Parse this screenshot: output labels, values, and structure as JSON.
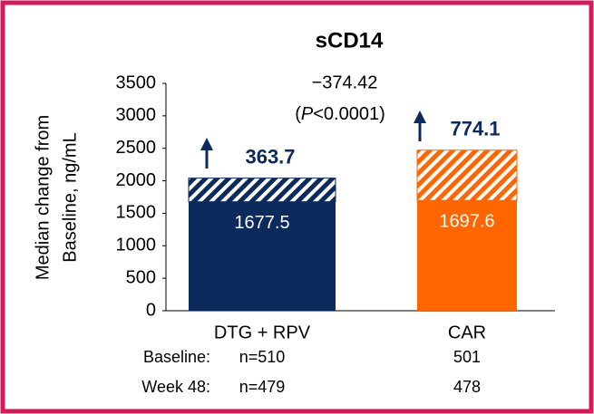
{
  "chart_data": {
    "type": "stacked_bar",
    "title": "sCD14",
    "y_label": [
      "Median change from",
      "Baseline, ng/mL"
    ],
    "categories": [
      "DTG + RPV",
      "CAR"
    ],
    "colors": [
      "#0c2a5b",
      "#ff6600"
    ],
    "series": [
      {
        "values": [
          1677.5,
          1697.6
        ],
        "pattern": "solid"
      },
      {
        "values": [
          363.7,
          774.1
        ],
        "pattern": "hatch"
      }
    ],
    "ylim": [
      0,
      3500
    ],
    "yticks": [
      0,
      500,
      1000,
      1500,
      2000,
      2500,
      3000,
      3500
    ],
    "difference": "−374.42",
    "p_value": [
      "(",
      "P",
      "<0.0001)"
    ],
    "n_table": {
      "rows": [
        {
          "label": "Baseline:",
          "values": [
            "n=510",
            "501"
          ]
        },
        {
          "label": "Week 48:",
          "values": [
            "n=479",
            "478"
          ]
        }
      ]
    }
  }
}
